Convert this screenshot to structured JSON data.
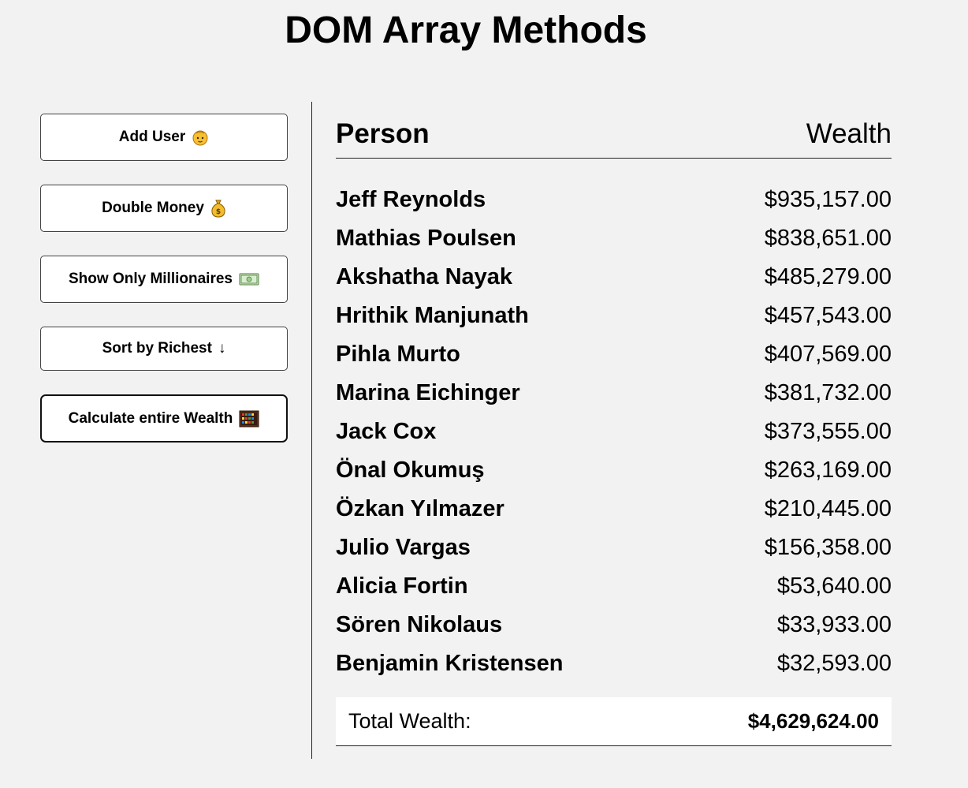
{
  "page": {
    "title": "DOM Array Methods"
  },
  "sidebar": {
    "buttons": [
      {
        "label": "Add User",
        "icon": "baby-face-emoji"
      },
      {
        "label": "Double Money",
        "icon": "money-bag-emoji"
      },
      {
        "label": "Show Only Millionaires",
        "icon": "dollar-banknote-emoji"
      },
      {
        "label": "Sort by Richest",
        "icon": "down-arrow-glyph",
        "glyph": "↓"
      },
      {
        "label": "Calculate entire Wealth",
        "icon": "abacus-emoji"
      }
    ]
  },
  "table": {
    "header": {
      "person": "Person",
      "wealth": "Wealth"
    },
    "rows": [
      {
        "name": "Jeff Reynolds",
        "wealth": "$935,157.00"
      },
      {
        "name": "Mathias Poulsen",
        "wealth": "$838,651.00"
      },
      {
        "name": "Akshatha Nayak",
        "wealth": "$485,279.00"
      },
      {
        "name": "Hrithik Manjunath",
        "wealth": "$457,543.00"
      },
      {
        "name": "Pihla Murto",
        "wealth": "$407,569.00"
      },
      {
        "name": "Marina Eichinger",
        "wealth": "$381,732.00"
      },
      {
        "name": "Jack Cox",
        "wealth": "$373,555.00"
      },
      {
        "name": "Önal Okumuş",
        "wealth": "$263,169.00"
      },
      {
        "name": "Özkan Yılmazer",
        "wealth": "$210,445.00"
      },
      {
        "name": "Julio Vargas",
        "wealth": "$156,358.00"
      },
      {
        "name": "Alicia Fortin",
        "wealth": "$53,640.00"
      },
      {
        "name": "Sören Nikolaus",
        "wealth": "$33,933.00"
      },
      {
        "name": "Benjamin Kristensen",
        "wealth": "$32,593.00"
      }
    ],
    "total": {
      "label": "Total Wealth:",
      "amount": "$4,629,624.00"
    }
  },
  "colors": {
    "background": "#f3f2f2",
    "button_bg": "#ffffff",
    "text": "#000000"
  }
}
